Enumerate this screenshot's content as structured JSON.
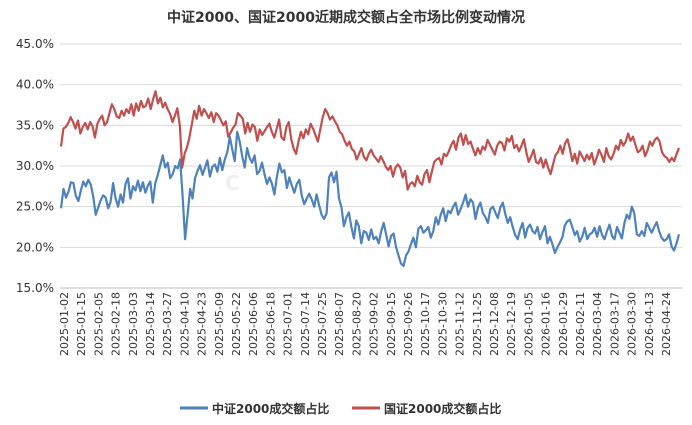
{
  "chart_data": {
    "type": "line",
    "title": "中证2000、国证2000近期成交额占全市场比例变动情况",
    "xlabel": "",
    "ylabel": "",
    "ylim": [
      15,
      45
    ],
    "yticks": [
      "15.0%",
      "20.0%",
      "25.0%",
      "30.0%",
      "35.0%",
      "40.0%",
      "45.0%"
    ],
    "ytick_values": [
      15,
      20,
      25,
      30,
      35,
      40,
      45
    ],
    "grid": true,
    "legend_position": "bottom",
    "x_tick_labels": [
      "2025-01-02",
      "2025-01-15",
      "2025-02-05",
      "2025-02-18",
      "2025-03-03",
      "2025-03-14",
      "2025-03-27",
      "2025-04-10",
      "2025-04-23",
      "2025-05-09",
      "2025-05-22",
      "2025-06-06",
      "2025-06-18",
      "2025-07-01",
      "2025-07-14",
      "2025-07-25",
      "2025-08-07",
      "2025-08-20",
      "2025-09-02",
      "2025-09-15",
      "2025-09-26",
      "2025-10-17",
      "2025-10-30",
      "2025-11-12",
      "2025-11-25",
      "2025-12-08",
      "2025-12-19",
      "2026-01-05",
      "2026-01-16",
      "2026-01-29",
      "2026-02-11",
      "2026-03-04",
      "2026-03-17",
      "2026-03-30",
      "2026-04-13",
      "2026-04-24"
    ],
    "series": [
      {
        "name": "中证2000成交额占比",
        "color": "#4f81bd",
        "values": [
          24.8,
          27.2,
          26.1,
          26.8,
          28.0,
          27.9,
          26.3,
          25.7,
          27.0,
          28.1,
          27.5,
          28.3,
          27.7,
          26.2,
          24.0,
          24.9,
          25.8,
          26.4,
          26.1,
          24.8,
          25.6,
          27.9,
          26.0,
          25.0,
          26.5,
          25.5,
          27.8,
          28.5,
          26.0,
          27.5,
          27.0,
          28.2,
          26.9,
          28.0,
          26.7,
          27.6,
          28.1,
          25.5,
          27.9,
          28.9,
          30.1,
          31.3,
          29.8,
          30.4,
          28.5,
          29.0,
          30.0,
          29.7,
          30.8,
          26.3,
          21.0,
          24.0,
          27.2,
          26.0,
          28.5,
          29.4,
          30.1,
          28.9,
          29.8,
          30.7,
          28.7,
          29.9,
          30.2,
          29.3,
          31.0,
          29.5,
          30.8,
          31.7,
          33.6,
          32.0,
          30.6,
          34.2,
          33.0,
          31.2,
          29.8,
          32.2,
          31.0,
          30.4,
          31.3,
          29.0,
          29.4,
          30.4,
          29.0,
          27.8,
          28.6,
          27.8,
          26.5,
          28.7,
          30.3,
          29.2,
          29.5,
          27.3,
          28.6,
          27.6,
          26.7,
          27.8,
          28.3,
          26.4,
          25.3,
          26.0,
          26.6,
          25.9,
          25.0,
          26.5,
          25.2,
          24.0,
          23.5,
          24.2,
          28.6,
          29.2,
          28.0,
          29.3,
          26.0,
          24.9,
          22.6,
          23.7,
          24.3,
          22.5,
          21.1,
          23.3,
          22.6,
          20.5,
          22.0,
          21.8,
          20.9,
          22.2,
          21.0,
          21.3,
          20.5,
          22.0,
          23.0,
          21.6,
          20.1,
          21.4,
          21.7,
          20.0,
          19.0,
          18.0,
          17.7,
          19.0,
          19.5,
          20.4,
          21.2,
          20.0,
          22.3,
          22.6,
          21.8,
          22.1,
          22.5,
          21.2,
          22.0,
          23.7,
          22.8,
          24.0,
          24.8,
          23.2,
          24.5,
          24.2,
          25.0,
          25.5,
          24.0,
          24.7,
          25.5,
          26.5,
          25.0,
          25.9,
          25.5,
          23.5,
          24.9,
          25.5,
          24.2,
          23.7,
          23.0,
          24.7,
          25.0,
          24.3,
          23.6,
          24.9,
          25.5,
          24.1,
          23.0,
          23.7,
          22.5,
          21.5,
          21.0,
          22.2,
          23.0,
          21.2,
          22.4,
          22.8,
          22.0,
          21.7,
          22.5,
          21.0,
          21.9,
          22.6,
          20.5,
          21.3,
          20.4,
          19.3,
          20.0,
          20.6,
          21.2,
          22.7,
          23.2,
          23.4,
          22.5,
          21.5,
          22.0,
          20.7,
          21.3,
          22.4,
          21.0,
          21.6,
          21.8,
          22.4,
          21.3,
          22.6,
          21.5,
          21.0,
          22.0,
          22.8,
          21.4,
          21.0,
          22.5,
          21.8,
          21.1,
          23.0,
          24.0,
          23.5,
          25.0,
          24.2,
          21.6,
          21.4,
          22.0,
          21.4,
          23.0,
          22.4,
          21.8,
          22.5,
          23.1,
          22.0,
          21.2,
          20.8,
          21.0,
          21.6,
          20.1,
          19.6,
          20.5,
          21.6
        ]
      },
      {
        "name": "国证2000成交额占比",
        "color": "#c0504d",
        "values": [
          32.4,
          34.6,
          34.8,
          35.3,
          36.0,
          35.4,
          34.6,
          35.6,
          34.0,
          34.8,
          35.3,
          34.5,
          35.4,
          34.9,
          33.5,
          35.2,
          35.8,
          36.2,
          35.0,
          35.4,
          36.5,
          37.6,
          37.0,
          36.1,
          35.9,
          36.8,
          36.2,
          37.0,
          36.5,
          37.6,
          36.2,
          37.7,
          36.8,
          38.0,
          37.2,
          37.4,
          38.3,
          37.0,
          38.2,
          39.2,
          37.7,
          38.4,
          37.2,
          37.8,
          37.0,
          36.4,
          35.4,
          36.2,
          37.1,
          35.0,
          29.8,
          31.5,
          32.3,
          33.5,
          35.2,
          36.8,
          35.8,
          37.4,
          36.2,
          37.0,
          36.5,
          35.9,
          36.6,
          35.4,
          36.5,
          36.2,
          35.6,
          35.0,
          35.5,
          33.6,
          34.1,
          34.7,
          35.1,
          36.5,
          36.2,
          35.8,
          34.0,
          35.3,
          34.2,
          35.1,
          34.8,
          33.1,
          34.5,
          33.8,
          34.3,
          34.8,
          35.2,
          34.2,
          33.5,
          34.6,
          35.7,
          33.5,
          33.2,
          34.8,
          35.4,
          33.3,
          32.1,
          31.5,
          33.0,
          34.2,
          33.4,
          34.5,
          33.9,
          35.2,
          34.6,
          33.8,
          33.0,
          34.5,
          36.0,
          37.0,
          36.5,
          35.7,
          36.1,
          35.5,
          35.0,
          34.2,
          33.9,
          33.1,
          32.5,
          33.0,
          32.1,
          31.8,
          30.8,
          31.5,
          32.2,
          31.1,
          30.7,
          31.5,
          32.0,
          31.3,
          30.9,
          30.5,
          31.2,
          30.6,
          29.9,
          29.5,
          30.0,
          28.7,
          29.8,
          30.2,
          29.8,
          28.6,
          29.4,
          27.1,
          27.8,
          28.0,
          27.5,
          28.8,
          28.0,
          27.7,
          29.0,
          29.5,
          28.0,
          29.3,
          30.5,
          30.8,
          31.0,
          30.2,
          31.5,
          31.2,
          31.8,
          32.6,
          33.1,
          32.0,
          33.5,
          34.0,
          32.6,
          33.8,
          32.7,
          33.0,
          32.1,
          31.3,
          32.2,
          31.5,
          32.4,
          32.0,
          33.2,
          32.6,
          32.0,
          31.4,
          32.5,
          33.0,
          32.8,
          31.9,
          33.4,
          33.0,
          33.7,
          32.2,
          32.6,
          31.8,
          32.5,
          33.3,
          31.7,
          30.5,
          31.2,
          32.0,
          30.5,
          30.3,
          31.0,
          29.8,
          30.8,
          29.8,
          29.0,
          30.2,
          31.3,
          31.7,
          32.5,
          31.5,
          32.8,
          33.3,
          32.1,
          30.6,
          31.5,
          30.3,
          31.8,
          31.2,
          30.6,
          31.4,
          30.8,
          31.6,
          30.2,
          31.0,
          32.0,
          31.4,
          30.5,
          32.2,
          31.2,
          30.8,
          31.5,
          32.5,
          32.0,
          33.2,
          32.5,
          33.0,
          34.0,
          33.1,
          33.6,
          32.6,
          31.7,
          31.9,
          32.5,
          31.2,
          31.9,
          33.0,
          32.5,
          33.2,
          33.5,
          33.0,
          31.7,
          31.2,
          31.0,
          30.5,
          31.0,
          30.6,
          31.5,
          32.2
        ]
      }
    ]
  }
}
